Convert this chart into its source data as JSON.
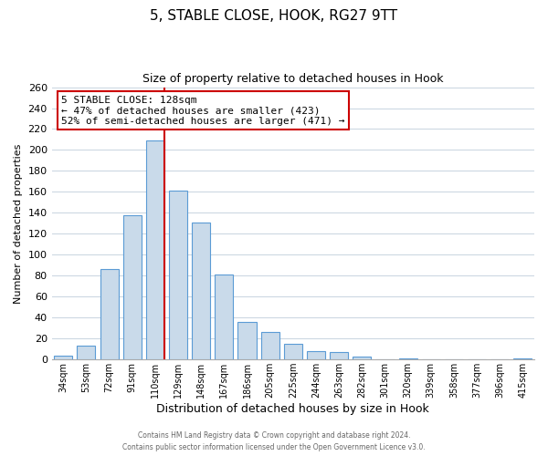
{
  "title": "5, STABLE CLOSE, HOOK, RG27 9TT",
  "subtitle": "Size of property relative to detached houses in Hook",
  "xlabel": "Distribution of detached houses by size in Hook",
  "ylabel": "Number of detached properties",
  "bar_labels": [
    "34sqm",
    "53sqm",
    "72sqm",
    "91sqm",
    "110sqm",
    "129sqm",
    "148sqm",
    "167sqm",
    "186sqm",
    "205sqm",
    "225sqm",
    "244sqm",
    "263sqm",
    "282sqm",
    "301sqm",
    "320sqm",
    "339sqm",
    "358sqm",
    "377sqm",
    "396sqm",
    "415sqm"
  ],
  "bar_values": [
    4,
    13,
    86,
    138,
    209,
    161,
    131,
    81,
    36,
    26,
    15,
    8,
    7,
    3,
    0,
    1,
    0,
    0,
    0,
    0,
    1
  ],
  "bar_color": "#c9daea",
  "bar_edge_color": "#5b9bd5",
  "vline_x_index": 4,
  "vline_color": "#cc0000",
  "ylim": [
    0,
    260
  ],
  "yticks": [
    0,
    20,
    40,
    60,
    80,
    100,
    120,
    140,
    160,
    180,
    200,
    220,
    240,
    260
  ],
  "annotation_title": "5 STABLE CLOSE: 128sqm",
  "annotation_line1": "← 47% of detached houses are smaller (423)",
  "annotation_line2": "52% of semi-detached houses are larger (471) →",
  "annotation_box_color": "#ffffff",
  "annotation_box_edge": "#cc0000",
  "footer_line1": "Contains HM Land Registry data © Crown copyright and database right 2024.",
  "footer_line2": "Contains public sector information licensed under the Open Government Licence v3.0.",
  "background_color": "#ffffff",
  "grid_color": "#c8d4e0"
}
